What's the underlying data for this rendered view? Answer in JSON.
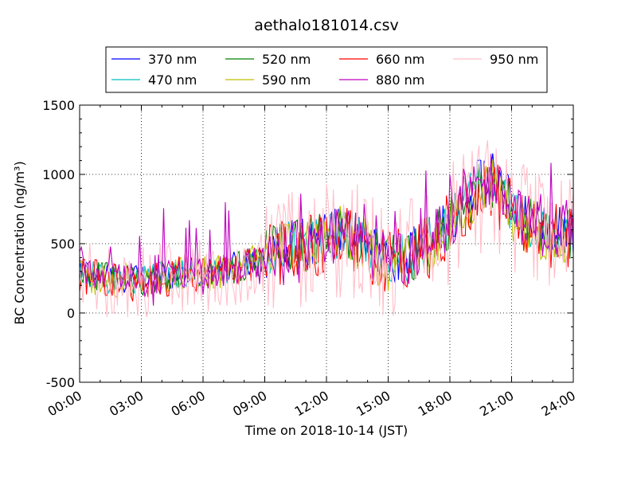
{
  "chart_data": {
    "type": "line",
    "title": "aethalo181014.csv",
    "xlabel": "Time on 2018-10-14 (JST)",
    "ylabel": "BC Concentration (ng/m³)",
    "ylim": [
      -500,
      1500
    ],
    "xlim_hours": [
      0,
      24
    ],
    "x_ticks": [
      "00:00",
      "03:00",
      "06:00",
      "09:00",
      "12:00",
      "15:00",
      "18:00",
      "21:00",
      "24:00"
    ],
    "y_ticks": [
      "-500",
      "0",
      "500",
      "1000",
      "1500"
    ],
    "grid": true,
    "legend_placement": "top, above plot",
    "x_unit": "hour of day (JST)",
    "series": [
      {
        "name": "370 nm",
        "color": "#0000ff",
        "x": [
          0,
          1,
          2,
          3,
          4,
          5,
          6,
          7,
          8,
          9,
          10,
          11,
          12,
          13,
          14,
          15,
          16,
          17,
          18,
          19,
          20,
          21,
          22,
          23,
          24
        ],
        "values": [
          320,
          260,
          250,
          240,
          270,
          300,
          290,
          320,
          350,
          420,
          500,
          520,
          560,
          600,
          480,
          380,
          420,
          520,
          680,
          880,
          1000,
          780,
          650,
          600,
          600
        ]
      },
      {
        "name": "470 nm",
        "color": "#00bfbf",
        "x": [
          0,
          1,
          2,
          3,
          4,
          5,
          6,
          7,
          8,
          9,
          10,
          11,
          12,
          13,
          14,
          15,
          16,
          17,
          18,
          19,
          20,
          21,
          22,
          23,
          24
        ],
        "values": [
          310,
          255,
          245,
          235,
          265,
          295,
          285,
          315,
          345,
          410,
          490,
          510,
          550,
          590,
          470,
          375,
          410,
          510,
          670,
          860,
          980,
          760,
          640,
          590,
          590
        ]
      },
      {
        "name": "520 nm",
        "color": "#008000",
        "x": [
          0,
          1,
          2,
          3,
          4,
          5,
          6,
          7,
          8,
          9,
          10,
          11,
          12,
          13,
          14,
          15,
          16,
          17,
          18,
          19,
          20,
          21,
          22,
          23,
          24
        ],
        "values": [
          300,
          250,
          240,
          230,
          260,
          290,
          280,
          310,
          340,
          400,
          480,
          500,
          540,
          580,
          460,
          370,
          400,
          500,
          660,
          840,
          960,
          740,
          630,
          580,
          580
        ]
      },
      {
        "name": "590 nm",
        "color": "#bfbf00",
        "x": [
          0,
          1,
          2,
          3,
          4,
          5,
          6,
          7,
          8,
          9,
          10,
          11,
          12,
          13,
          14,
          15,
          16,
          17,
          18,
          19,
          20,
          21,
          22,
          23,
          24
        ],
        "values": [
          295,
          245,
          235,
          225,
          255,
          285,
          275,
          305,
          335,
          395,
          470,
          490,
          530,
          570,
          450,
          365,
          395,
          490,
          650,
          820,
          940,
          730,
          620,
          570,
          570
        ]
      },
      {
        "name": "660 nm",
        "color": "#ff0000",
        "x": [
          0,
          1,
          2,
          3,
          4,
          5,
          6,
          7,
          8,
          9,
          10,
          11,
          12,
          13,
          14,
          15,
          16,
          17,
          18,
          19,
          20,
          21,
          22,
          23,
          24
        ],
        "values": [
          290,
          240,
          230,
          220,
          250,
          280,
          270,
          300,
          330,
          390,
          460,
          480,
          520,
          560,
          440,
          360,
          390,
          480,
          640,
          800,
          920,
          720,
          610,
          560,
          560
        ]
      },
      {
        "name": "880 nm",
        "color": "#bf00bf",
        "x": [
          0,
          1,
          2,
          3,
          4,
          5,
          6,
          7,
          8,
          9,
          10,
          11,
          12,
          13,
          14,
          15,
          16,
          17,
          18,
          19,
          20,
          21,
          22,
          23,
          24
        ],
        "values": [
          300,
          250,
          240,
          230,
          260,
          290,
          280,
          310,
          340,
          400,
          480,
          500,
          540,
          580,
          460,
          370,
          400,
          500,
          660,
          840,
          960,
          740,
          630,
          580,
          580
        ]
      },
      {
        "name": "950 nm",
        "color": "#ffc0cb",
        "x": [
          0,
          1,
          2,
          3,
          4,
          5,
          6,
          7,
          8,
          9,
          10,
          11,
          12,
          13,
          14,
          15,
          16,
          17,
          18,
          19,
          20,
          21,
          22,
          23,
          24
        ],
        "values": [
          280,
          230,
          220,
          210,
          240,
          270,
          260,
          290,
          320,
          380,
          450,
          470,
          510,
          550,
          430,
          350,
          380,
          470,
          630,
          790,
          900,
          700,
          600,
          550,
          550
        ]
      }
    ]
  }
}
